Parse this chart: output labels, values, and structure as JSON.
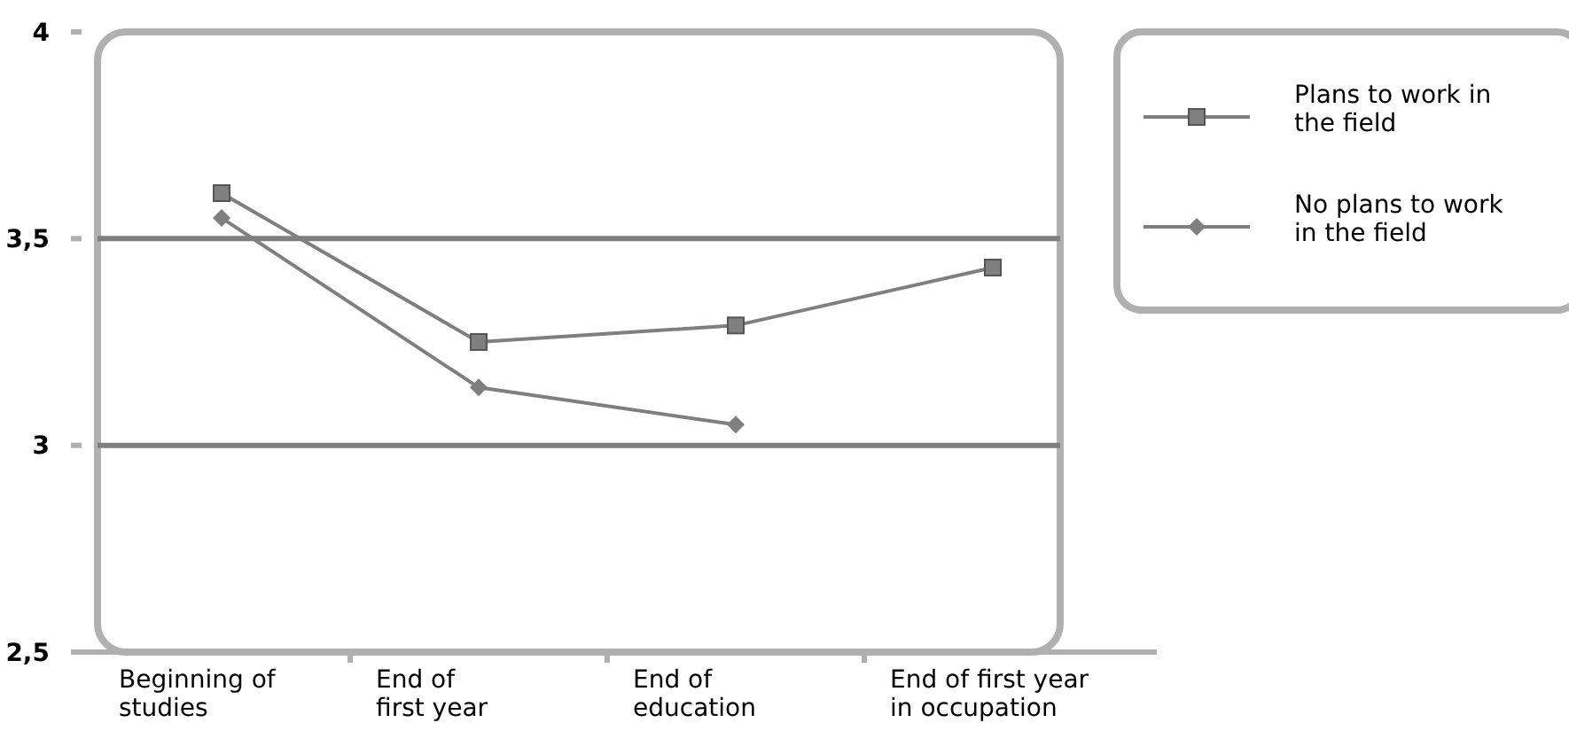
{
  "chart_data": {
    "type": "line",
    "categories": [
      "Beginning of studies",
      "End of first year",
      "End of education",
      "End of first year in occupation"
    ],
    "series": [
      {
        "name": "Plans to work in the field",
        "color": "#7f7f7f",
        "marker": "square",
        "values": [
          3.61,
          3.25,
          3.29,
          3.43
        ]
      },
      {
        "name": "No plans to work in the field",
        "color": "#7f7f7f",
        "marker": "diamond",
        "values": [
          3.55,
          3.14,
          3.05,
          null
        ]
      }
    ],
    "ylim": [
      2.5,
      4
    ],
    "yticks": [
      {
        "value": 2.5,
        "label": "2,5"
      },
      3,
      {
        "value": 3.5,
        "label": "3,5"
      },
      4
    ],
    "grid": "y",
    "legend": "right"
  }
}
